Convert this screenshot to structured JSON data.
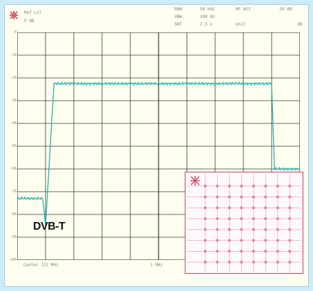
{
  "header": {
    "ref_level": "Ref Lvl",
    "ref_value": "5 dB",
    "rbw_label": "RBW",
    "rbw_value": "50 kHz",
    "rf_att": "RF Att",
    "rf_att_value": "20 dB",
    "vbw_label": "VBW",
    "vbw_value": "200 Hz",
    "swt_label": "SWT",
    "swt_value": "2.5 s",
    "unit": "Unit",
    "unit_value": "dB"
  },
  "axis": {
    "y_ticks": [
      "0",
      "-10",
      "-20",
      "-30",
      "-40",
      "-50",
      "-60",
      "-70",
      "-80",
      "-90",
      "-100"
    ],
    "x_center": "Center 722 MHz",
    "x_span": "1 MHz"
  },
  "label": "DVB-T",
  "colors": {
    "trace": "#2fb4b0",
    "grid": "#333333",
    "background": "#ccecf8",
    "inset_border": "#c43a6b",
    "constellation": "#e27aa9"
  },
  "chart_data": {
    "type": "line",
    "x": [
      0,
      0.9,
      1.0,
      1.3,
      9.0,
      9.1,
      10
    ],
    "y": [
      -73,
      -73,
      -85,
      -22.5,
      -22.5,
      -60,
      -60
    ],
    "ylim": [
      -100,
      0
    ],
    "xlim": [
      0,
      10
    ],
    "grid": true
  }
}
